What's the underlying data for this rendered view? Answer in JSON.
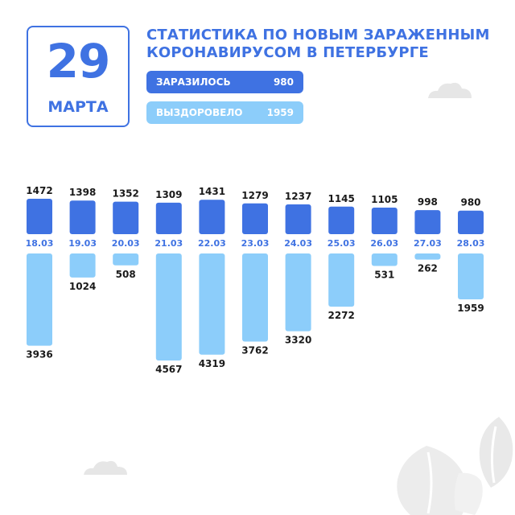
{
  "date": {
    "day": "29",
    "month": "МАРТА"
  },
  "title": {
    "line1": "СТАТИСТИКА ПО НОВЫМ ЗАРАЖЕННЫМ",
    "line2": "КОРОНАВИРУСОМ В ПЕТЕРБУРГЕ"
  },
  "legend": {
    "infected": {
      "label": "ЗАРАЗИЛОСЬ",
      "value": "980"
    },
    "recovered": {
      "label": "ВЫЗДОРОВЕЛО",
      "value": "1959"
    }
  },
  "colors": {
    "infected": "#3f72e2",
    "recovered": "#8ccdfa",
    "decor": "#e6e6e6"
  },
  "chart_data": {
    "type": "bar",
    "categories": [
      "18.03",
      "19.03",
      "20.03",
      "21.03",
      "22.03",
      "23.03",
      "24.03",
      "25.03",
      "26.03",
      "27.03",
      "28.03"
    ],
    "series": [
      {
        "name": "ЗАРАЗИЛОСЬ",
        "values": [
          1472,
          1398,
          1352,
          1309,
          1431,
          1279,
          1237,
          1145,
          1105,
          998,
          980
        ]
      },
      {
        "name": "ВЫЗДОРОВЕЛО",
        "values": [
          3936,
          1024,
          508,
          4567,
          4319,
          3762,
          3320,
          2272,
          531,
          262,
          1959
        ]
      }
    ],
    "layout": "diverging (infected above, recovered below)",
    "grid": false
  }
}
